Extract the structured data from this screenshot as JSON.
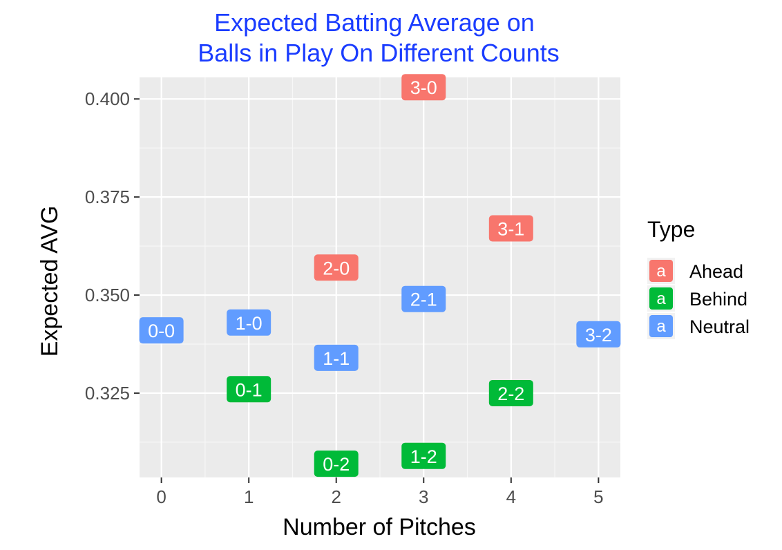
{
  "chart_data": {
    "type": "scatter",
    "title_lines": [
      "Expected Batting Average on",
      "Balls in Play On Different Counts"
    ],
    "xlabel": "Number of Pitches",
    "ylabel": "Expected AVG",
    "xlim": [
      -0.25,
      5.25
    ],
    "ylim": [
      0.3035,
      0.4055
    ],
    "x_ticks": [
      0,
      1,
      2,
      3,
      4,
      5
    ],
    "x_tick_labels": [
      "0",
      "1",
      "2",
      "3",
      "4",
      "5"
    ],
    "y_ticks": [
      0.325,
      0.35,
      0.375,
      0.4
    ],
    "y_tick_labels": [
      "0.325",
      "0.350",
      "0.375",
      "0.400"
    ],
    "grid": true,
    "legend": {
      "title": "Type",
      "position": "right",
      "key_glyph": "a",
      "entries": [
        {
          "name": "Ahead",
          "color": "#F8766D"
        },
        {
          "name": "Behind",
          "color": "#00BA38"
        },
        {
          "name": "Neutral",
          "color": "#619CFF"
        }
      ]
    },
    "points": [
      {
        "label": "0-0",
        "x": 0,
        "y": 0.341,
        "type": "Neutral"
      },
      {
        "label": "1-0",
        "x": 1,
        "y": 0.343,
        "type": "Neutral"
      },
      {
        "label": "0-1",
        "x": 1,
        "y": 0.326,
        "type": "Behind"
      },
      {
        "label": "2-0",
        "x": 2,
        "y": 0.357,
        "type": "Ahead"
      },
      {
        "label": "1-1",
        "x": 2,
        "y": 0.334,
        "type": "Neutral"
      },
      {
        "label": "0-2",
        "x": 2,
        "y": 0.307,
        "type": "Behind"
      },
      {
        "label": "3-0",
        "x": 3,
        "y": 0.403,
        "type": "Ahead"
      },
      {
        "label": "2-1",
        "x": 3,
        "y": 0.349,
        "type": "Neutral"
      },
      {
        "label": "1-2",
        "x": 3,
        "y": 0.309,
        "type": "Behind"
      },
      {
        "label": "3-1",
        "x": 4,
        "y": 0.367,
        "type": "Ahead"
      },
      {
        "label": "2-2",
        "x": 4,
        "y": 0.325,
        "type": "Behind"
      },
      {
        "label": "3-2",
        "x": 5,
        "y": 0.34,
        "type": "Neutral"
      }
    ]
  }
}
